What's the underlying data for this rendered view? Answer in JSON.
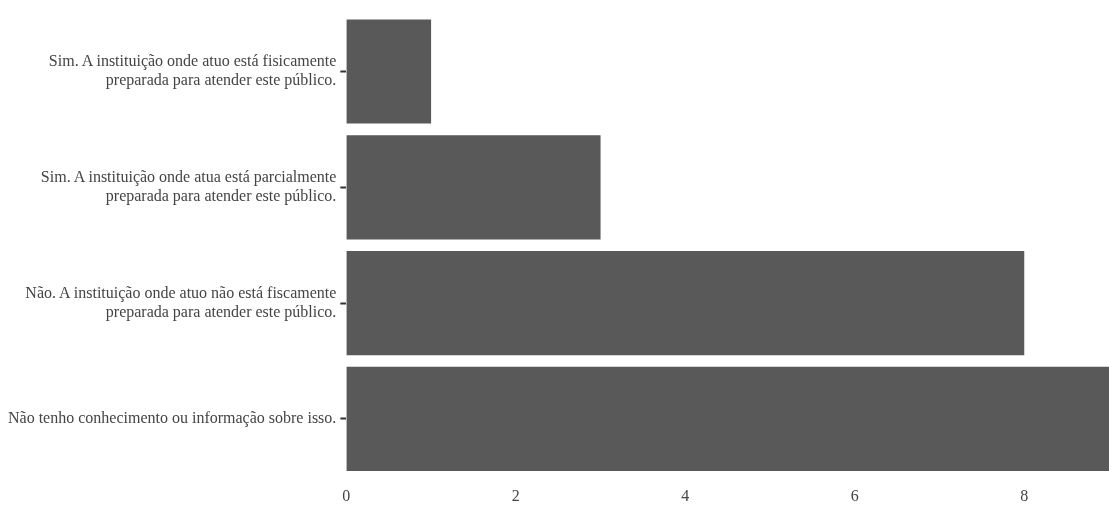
{
  "chart_data": {
    "type": "bar",
    "orientation": "horizontal",
    "categories": [
      "Sim. A instituição onde atuo está fisicamente\npreparada para atender este público.",
      "Sim. A instituição onde atua está parcialmente\npreparada para atender este público.",
      "Não. A instituição onde atuo não está fiscamente\npreparada para atender este público.",
      "Não tenho conhecimento ou informação sobre isso."
    ],
    "values": [
      1,
      3,
      8,
      9
    ],
    "color": "#595959",
    "xlim": [
      0,
      9
    ],
    "xticks": [
      0,
      2,
      4,
      6,
      8
    ],
    "grid": false,
    "legend": false
  }
}
